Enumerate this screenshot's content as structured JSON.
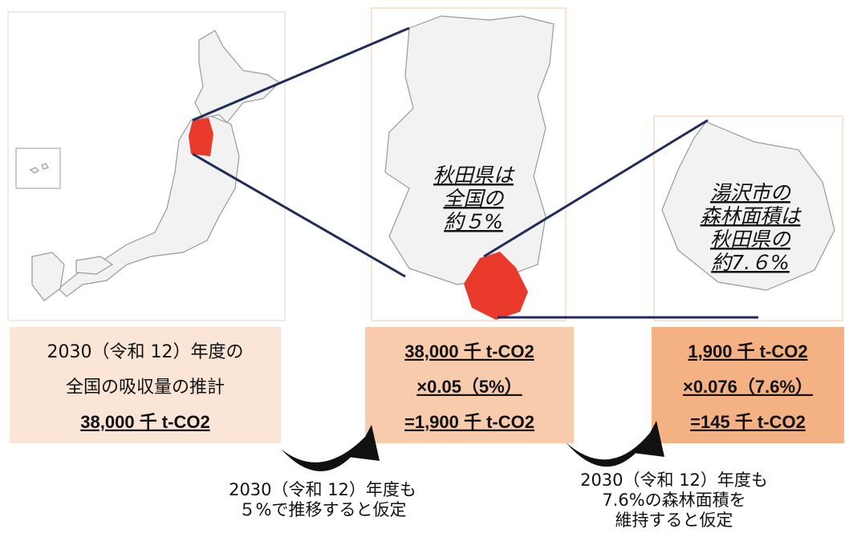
{
  "panels": [
    {
      "box_lines": [
        "2030（令和 12）年度の",
        "全国の吸収量の推計",
        "38,000 千 t-CO2"
      ]
    },
    {
      "map_label": [
        "秋田県は",
        "全国の",
        "約５%"
      ],
      "box_lines": [
        "38,000 千 t-CO2",
        "×0.05（5%）",
        "=1,900 千 t-CO2"
      ]
    },
    {
      "map_label": [
        "湯沢市の",
        "森林面積は",
        "秋田県の",
        "約7.６%"
      ],
      "box_lines": [
        "1,900 千 t-CO2",
        "×0.076（7.6%）",
        "=145 千 t-CO2"
      ]
    }
  ],
  "captions": [
    [
      "2030（令和 12）年度も",
      "５%で推移すると仮定"
    ],
    [
      "2030（令和 12）年度も",
      "7.6%の森林面積を",
      "維持すると仮定"
    ]
  ]
}
